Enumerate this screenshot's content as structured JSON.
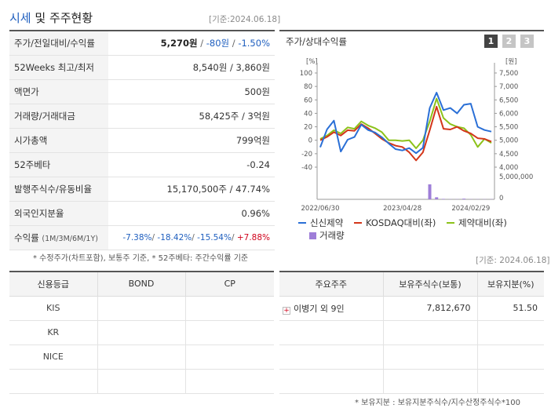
{
  "header": {
    "title_blue": "시세",
    "title_mid": " 및 ",
    "title_dark": "주주현황",
    "base_date": "[기준:2024.06.18]"
  },
  "price_table": {
    "rows": [
      {
        "label": "주가/전일대비/수익률"
      },
      {
        "label": "52Weeks 최고/최저",
        "value": "8,540원 / 3,860원"
      },
      {
        "label": "액면가",
        "value": "500원"
      },
      {
        "label": "거래량/거래대금",
        "value": "58,425주 / 3억원"
      },
      {
        "label": "시가총액",
        "value": "799억원"
      },
      {
        "label": "52주베타",
        "value": "-0.24"
      },
      {
        "label": "발행주식수/유동비율",
        "value": "15,170,500주 / 47.74%"
      },
      {
        "label": "외국인지분율",
        "value": "0.96%"
      },
      {
        "label": "수익률",
        "label_small": "(1M/3M/6M/1Y)"
      }
    ],
    "price": "5,270원",
    "sep1": " / ",
    "change": "-80원",
    "sep2": " / ",
    "change_pct": "-1.50%",
    "returns": {
      "r1m": "-7.38%",
      "r3m": "-18.42%",
      "r6m": "-15.54%",
      "r1y": "+7.88%",
      "sep": "/ "
    },
    "footnote": "* 수정주가(차트포함), 보통주 기준, * 52주베타: 주간수익률 기준"
  },
  "chart_panel": {
    "title": "주가/상대수익률",
    "tabs": [
      "1",
      "2",
      "3"
    ],
    "active_tab": "1",
    "legend": {
      "s1": "신신제약",
      "s2": "KOSDAQ대비(좌)",
      "s3": "제약대비(좌)",
      "s4": "거래량"
    }
  },
  "chart_data": {
    "type": "line",
    "left_axis_unit": "[%]",
    "right_axis_unit": "[원]",
    "left_ticks": [
      "100",
      "80",
      "60",
      "40",
      "20",
      "0",
      "-20",
      "-40"
    ],
    "right_ticks": [
      "7,500",
      "7,000",
      "6,500",
      "6,000",
      "5,500",
      "5,000",
      "4,500",
      "4,000"
    ],
    "volume_ticks": [
      "5,000,000",
      "0"
    ],
    "x_labels": [
      "2022/06/30",
      "2023/04/28",
      "2024/02/29"
    ],
    "ylim_left": [
      -40,
      100
    ],
    "ylim_right": [
      4000,
      7500
    ],
    "volume_max": 5000000,
    "colors": {
      "price": "#2a6fd6",
      "kosdaq": "#d3361a",
      "pharma": "#8cc21a",
      "volume": "#9e7ed8"
    },
    "series": [
      {
        "name": "신신제약",
        "axis": "right",
        "values": [
          4740,
          5410,
          5730,
          4580,
          5020,
          5120,
          5580,
          5380,
          5290,
          5110,
          4880,
          4670,
          4620,
          4710,
          4520,
          4720,
          6200,
          6770,
          6120,
          6200,
          6000,
          6320,
          6360,
          5500,
          5380,
          5320
        ]
      },
      {
        "name": "KOSDAQ대비(좌)",
        "axis": "left",
        "values": [
          0,
          5,
          12,
          7,
          15,
          14,
          24,
          18,
          10,
          2,
          -4,
          -8,
          -10,
          -18,
          -30,
          -18,
          15,
          50,
          17,
          16,
          20,
          14,
          10,
          3,
          2,
          -2
        ]
      },
      {
        "name": "제약대비(좌)",
        "axis": "left",
        "values": [
          2,
          7,
          15,
          10,
          19,
          17,
          28,
          22,
          18,
          12,
          0,
          0,
          -1,
          0,
          -12,
          0,
          28,
          62,
          33,
          24,
          20,
          18,
          8,
          -10,
          2,
          -4
        ]
      }
    ],
    "volume": [
      0,
      0,
      0,
      0,
      0,
      0,
      0,
      0,
      0,
      0,
      0,
      0,
      0,
      0,
      0,
      0,
      3300000,
      450000,
      100000,
      40000,
      40000,
      150000,
      40000,
      40000,
      40000,
      40000
    ]
  },
  "credit_table": {
    "headers": [
      "신용등급",
      "BOND",
      "CP"
    ],
    "rows": [
      {
        "agency": "KIS",
        "bond": "",
        "cp": ""
      },
      {
        "agency": "KR",
        "bond": "",
        "cp": ""
      },
      {
        "agency": "NICE",
        "bond": "",
        "cp": ""
      },
      {
        "agency": "",
        "bond": "",
        "cp": ""
      }
    ]
  },
  "holders_table": {
    "base_date": "[기준: 2024.06.18]",
    "headers": [
      "주요주주",
      "보유주식수(보통)",
      "보유지분(%)"
    ],
    "rows": [
      {
        "name": "이병기 외 9인",
        "shares": "7,812,670",
        "pct": "51.50"
      },
      {
        "name": "",
        "shares": "",
        "pct": ""
      },
      {
        "name": "",
        "shares": "",
        "pct": ""
      },
      {
        "name": "",
        "shares": "",
        "pct": ""
      }
    ],
    "footnote": "* 보유지분 : 보유지분주식수/지수산정주식수*100"
  }
}
